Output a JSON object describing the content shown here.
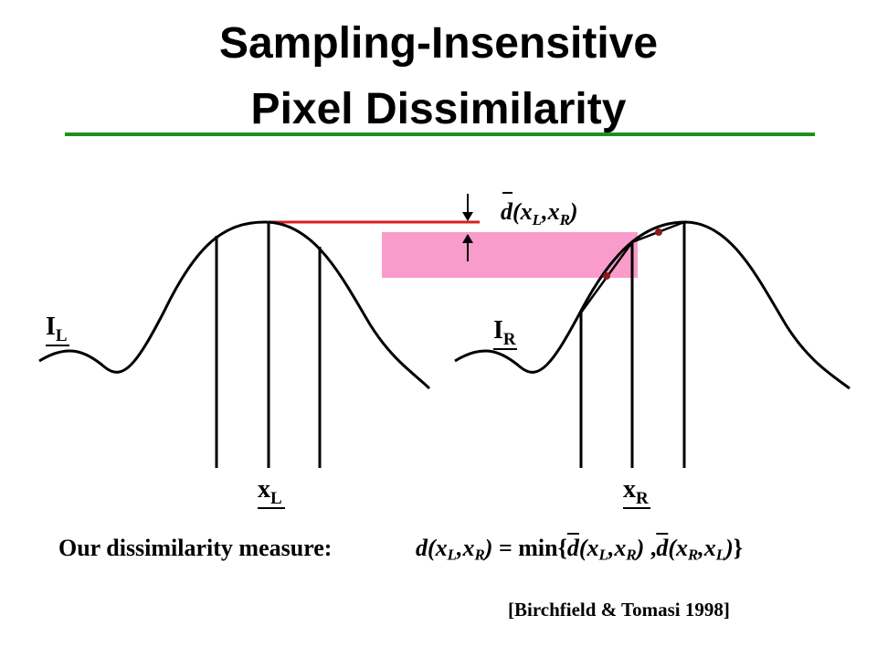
{
  "title": {
    "line1": "Sampling-Insensitive",
    "line2": "Pixel Dissimilarity"
  },
  "diagram": {
    "left_curve_label": {
      "main": "I",
      "sub": "L"
    },
    "right_curve_label": {
      "main": "I",
      "sub": "R"
    },
    "left_sample_label": {
      "main": "x",
      "sub": "L"
    },
    "right_sample_label": {
      "main": "x",
      "sub": "R"
    },
    "dbar_label": {
      "d": "d",
      "open": "(x",
      "sub1": "L",
      "comma": ",x",
      "sub2": "R",
      "close": ")"
    },
    "colors": {
      "band": "#f99ccc",
      "marker_line": "#d42020",
      "dot": "#8b1a1a",
      "rule": "#1f8f1f"
    }
  },
  "formula": {
    "label": "Our dissimilarity measure:",
    "lhs_d": "d(x",
    "lhs_sub1": "L",
    "lhs_comma": ",x",
    "lhs_sub2": "R",
    "lhs_close": ")",
    "eq": " = min{",
    "t1_d": "d",
    "t1_open": "(x",
    "t1_sub1": "L",
    "t1_comma": ",x",
    "t1_sub2": "R",
    "t1_close": ")",
    "sep": " ,",
    "t2_d": "d",
    "t2_open": "(x",
    "t2_sub1": "R",
    "t2_comma": ",x",
    "t2_sub2": "L",
    "t2_close": ")",
    "end": "}"
  },
  "citation": "[Birchfield & Tomasi 1998]"
}
